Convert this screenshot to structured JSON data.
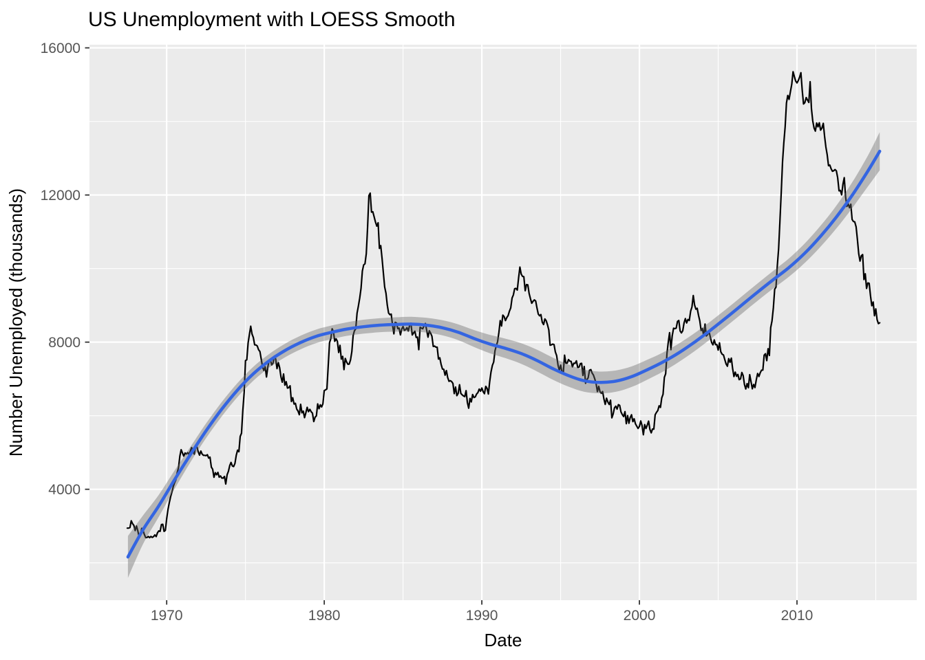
{
  "chart_data": {
    "type": "line",
    "title": "US Unemployment with LOESS Smooth",
    "xlabel": "Date",
    "ylabel": "Number Unemployed (thousands)",
    "grid": "on",
    "legend": "none",
    "x_axis": {
      "range": [
        1965.1,
        2017.6
      ],
      "major_ticks": [
        1970,
        1980,
        1990,
        2000,
        2010
      ],
      "labels": [
        "1970",
        "1980",
        "1990",
        "2000",
        "2010"
      ],
      "minor_ticks": [
        1975,
        1985,
        1995,
        2005,
        2015
      ]
    },
    "y_axis": {
      "range": [
        985,
        16086
      ],
      "major_ticks": [
        4000,
        8000,
        12000,
        16000
      ],
      "labels": [
        "4000",
        "8000",
        "12000",
        "16000"
      ],
      "minor_ticks": [
        2000,
        6000,
        10000,
        14000
      ]
    },
    "colors": {
      "panel": "#EBEBEB",
      "grid": "#FFFFFF",
      "raw_line": "#000000",
      "smooth_line": "#3465E1",
      "ribbon": "rgba(102,102,102,0.40)",
      "tick_label": "#555555",
      "tick_mark": "#333333",
      "text": "#000000"
    },
    "series": [
      {
        "name": "unemploy",
        "geom": "line",
        "color": "#000000",
        "frequency": "monthly",
        "start_year": 1967,
        "start_month": 7,
        "values": [
          2944,
          2945,
          2958,
          3143,
          3066,
          3018,
          2878,
          3001,
          2877,
          2709,
          2740,
          2938,
          2883,
          2768,
          2686,
          2689,
          2715,
          2685,
          2718,
          2692,
          2712,
          2758,
          2713,
          2816,
          2868,
          2856,
          3040,
          3049,
          2856,
          2884,
          3201,
          3453,
          3635,
          3797,
          3919,
          4071,
          4175,
          4256,
          4456,
          4591,
          4898,
          5076,
          4986,
          4903,
          4987,
          4959,
          4996,
          4949,
          5035,
          5134,
          5042,
          4954,
          5161,
          5154,
          5019,
          4928,
          5038,
          4959,
          4922,
          4923,
          4913,
          4939,
          4849,
          4875,
          4602,
          4543,
          4326,
          4452,
          4394,
          4459,
          4329,
          4363,
          4305,
          4305,
          4350,
          4144,
          4396,
          4489,
          4644,
          4731,
          4634,
          4618,
          4705,
          4927,
          5063,
          5022,
          5437,
          5523,
          6140,
          6636,
          7501,
          7520,
          7978,
          8210,
          8433,
          8220,
          8127,
          7928,
          7923,
          7897,
          7794,
          7744,
          7534,
          7326,
          7230,
          7330,
          7053,
          7322,
          7490,
          7518,
          7380,
          7430,
          7620,
          7545,
          7280,
          7443,
          7307,
          7059,
          6911,
          7134,
          6829,
          6925,
          6751,
          6763,
          6815,
          6386,
          6489,
          6318,
          6337,
          6180,
          6127,
          6028,
          6309,
          6080,
          6125,
          5947,
          6077,
          6228,
          6109,
          6173,
          6109,
          6069,
          5840,
          5959,
          5996,
          6320,
          6190,
          6296,
          6238,
          6325,
          6683,
          6702,
          6729,
          7358,
          7984,
          8098,
          8363,
          8281,
          8021,
          8088,
          8023,
          7718,
          7913,
          7540,
          7612,
          7254,
          7557,
          7459,
          7399,
          7402,
          7516,
          7739,
          8180,
          8309,
          8359,
          8790,
          8979,
          9203,
          9467,
          9934,
          10100,
          10130,
          10405,
          11128,
          11984,
          12051,
          11534,
          11545,
          11408,
          11268,
          11154,
          11246,
          10548,
          10623,
          10282,
          9887,
          9499,
          9331,
          9008,
          8791,
          8746,
          8762,
          8456,
          8226,
          8537,
          8519,
          8367,
          8381,
          8198,
          8358,
          8423,
          8321,
          8339,
          8395,
          8302,
          8460,
          8513,
          8196,
          8248,
          8298,
          8128,
          8138,
          7795,
          8402,
          8383,
          8364,
          8439,
          8508,
          8319,
          8135,
          8310,
          8243,
          8159,
          7883,
          7892,
          7865,
          7862,
          7542,
          7574,
          7398,
          7268,
          7261,
          7102,
          7227,
          7035,
          6936,
          6953,
          6929,
          6876,
          6601,
          6779,
          6546,
          6605,
          6843,
          6604,
          6568,
          6537,
          6518,
          6682,
          6359,
          6205,
          6468,
          6375,
          6577,
          6495,
          6511,
          6590,
          6630,
          6725,
          6667,
          6752,
          6651,
          6598,
          6797,
          6742,
          6590,
          6922,
          7188,
          7368,
          7459,
          7764,
          7901,
          8015,
          8265,
          8586,
          8439,
          8736,
          8692,
          8586,
          8666,
          8722,
          8842,
          8931,
          9198,
          9283,
          9454,
          9460,
          9415,
          9744,
          10040,
          9850,
          9787,
          9781,
          9398,
          9565,
          9557,
          9325,
          9183,
          9056,
          9110,
          9149,
          9121,
          8930,
          8763,
          8714,
          8750,
          8542,
          8477,
          8630,
          8583,
          8470,
          8331,
          7915,
          7927,
          7946,
          7933,
          7734,
          7632,
          7375,
          7230,
          7375,
          7187,
          7153,
          7645,
          7430,
          7427,
          7527,
          7484,
          7478,
          7328,
          7426,
          7423,
          7491,
          7313,
          7318,
          7415,
          7423,
          7095,
          7337,
          6882,
          6979,
          7031,
          7236,
          7253,
          7158,
          7102,
          7000,
          6873,
          6655,
          6799,
          6655,
          6608,
          6656,
          6454,
          6308,
          6476,
          6368,
          6306,
          6422,
          5941,
          6047,
          6212,
          6259,
          6179,
          6300,
          6280,
          6100,
          6032,
          5976,
          6111,
          5783,
          6004,
          5796,
          5951,
          6025,
          5838,
          5915,
          5778,
          5716,
          5653,
          5708,
          5858,
          5733,
          5481,
          5758,
          5651,
          5747,
          5853,
          5625,
          5534,
          5639,
          5634,
          6023,
          6089,
          6141,
          6271,
          6226,
          6484,
          6583,
          7042,
          7142,
          7694,
          8003,
          8258,
          7795,
          8171,
          8378,
          8367,
          8381,
          8564,
          8590,
          8304,
          8251,
          8307,
          8520,
          8640,
          8520,
          8618,
          8588,
          8842,
          8957,
          9266,
          9011,
          8896,
          8921,
          8732,
          8576,
          8317,
          8370,
          8167,
          8491,
          8170,
          8212,
          8286,
          8136,
          7990,
          7927,
          8061,
          7932,
          7934,
          7784,
          7980,
          7737,
          7672,
          7651,
          7524,
          7406,
          7345,
          7553,
          7453,
          7566,
          7279,
          7064,
          7184,
          7072,
          7120,
          6980,
          7001,
          7175,
          7091,
          6847,
          6727,
          6872,
          6762,
          7116,
          6927,
          6731,
          6850,
          6766,
          6979,
          7149,
          7067,
          7170,
          7237,
          7240,
          7645,
          7685,
          7497,
          7822,
          7637,
          8395,
          8575,
          8937,
          9438,
          9494,
          10074,
          10538,
          11286,
          12058,
          12898,
          13426,
          13853,
          14499,
          14707,
          14601,
          14814,
          15009,
          15352,
          15219,
          15098,
          15046,
          15113,
          15202,
          15325,
          14849,
          14474,
          14512,
          14648,
          14579,
          14516,
          15081,
          14348,
          14013,
          13820,
          13737,
          13957,
          13855,
          13962,
          13763,
          13818,
          13948,
          13594,
          13302,
          13093,
          12797,
          12813,
          12713,
          12646,
          12660,
          12692,
          12656,
          12471,
          12115,
          12124,
          12005,
          12298,
          12471,
          11950,
          11689,
          11760,
          11654,
          11751,
          11335,
          11279,
          11270,
          11136,
          10787,
          10404,
          10202,
          10349,
          10380,
          9702,
          9859,
          9460,
          9608,
          9599,
          9262,
          8990,
          9090,
          8717,
          8903,
          8610,
          8504,
          8526
        ]
      }
    ],
    "smooth": {
      "name": "loess",
      "color": "#3465E1",
      "x": [
        1967.54,
        1968.5,
        1969.5,
        1970.5,
        1971.5,
        1972.5,
        1973.5,
        1974.5,
        1975.5,
        1976.5,
        1977.5,
        1978.5,
        1979.5,
        1980.5,
        1981.5,
        1982.5,
        1983.5,
        1984.5,
        1985.5,
        1986.5,
        1987.5,
        1988.5,
        1989.5,
        1990.5,
        1991.5,
        1992.5,
        1993.5,
        1994.5,
        1995.5,
        1996.5,
        1997.5,
        1998.5,
        1999.5,
        2000.5,
        2001.5,
        2002.5,
        2003.5,
        2004.5,
        2005.5,
        2006.5,
        2007.5,
        2008.5,
        2009.5,
        2010.5,
        2011.5,
        2012.5,
        2013.5,
        2014.5,
        2015.25
      ],
      "fit": [
        2160,
        2900,
        3550,
        4260,
        4940,
        5590,
        6180,
        6700,
        7140,
        7490,
        7770,
        7990,
        8160,
        8270,
        8360,
        8420,
        8460,
        8480,
        8490,
        8460,
        8390,
        8270,
        8100,
        7950,
        7830,
        7690,
        7500,
        7280,
        7090,
        6950,
        6905,
        6940,
        7060,
        7250,
        7460,
        7710,
        8000,
        8320,
        8660,
        9010,
        9360,
        9700,
        10030,
        10420,
        10880,
        11400,
        11990,
        12650,
        13190
      ],
      "band": [
        570,
        390,
        300,
        250,
        210,
        200,
        195,
        190,
        190,
        185,
        185,
        185,
        185,
        185,
        185,
        190,
        190,
        195,
        200,
        200,
        205,
        215,
        230,
        250,
        265,
        280,
        295,
        300,
        300,
        300,
        295,
        290,
        280,
        270,
        260,
        250,
        245,
        240,
        235,
        235,
        235,
        240,
        250,
        265,
        285,
        310,
        350,
        420,
        520
      ]
    }
  }
}
